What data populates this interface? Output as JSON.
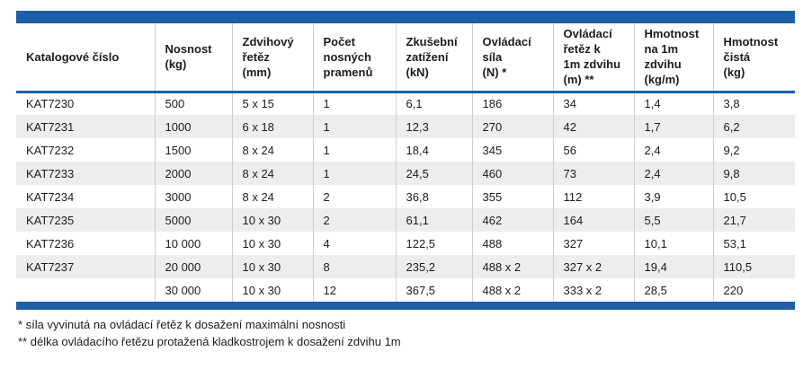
{
  "accent_color": "#1d5fa5",
  "stripe_color": "#ededed",
  "divider_color": "#cfcfcf",
  "table": {
    "columns": [
      {
        "id": "katalogove-cislo",
        "label": "Katalogové číslo"
      },
      {
        "id": "nosnost",
        "label": "Nosnost\n(kg)"
      },
      {
        "id": "zdvihovy-retez",
        "label": "Zdvihový\nřetěz\n(mm)"
      },
      {
        "id": "pocet-pramenu",
        "label": "Počet\nnosných\npramenů"
      },
      {
        "id": "zkusebni-zatizeni",
        "label": "Zkušební\nzatížení\n(kN)"
      },
      {
        "id": "ovladaci-sila",
        "label": "Ovládací\nsíla\n(N) *"
      },
      {
        "id": "ovladaci-retez",
        "label": "Ovládací\nřetěz k\n1m zdvihu\n(m) **"
      },
      {
        "id": "hmotnost-na-1m",
        "label": "Hmotnost\nna 1m\nzdvihu\n(kg/m)"
      },
      {
        "id": "hmotnost-cista",
        "label": "Hmotnost\nčistá\n(kg)"
      }
    ],
    "rows": [
      [
        "KAT7230",
        "500",
        "5 x 15",
        "1",
        "6,1",
        "186",
        "34",
        "1,4",
        "3,8"
      ],
      [
        "KAT7231",
        "1000",
        "6 x 18",
        "1",
        "12,3",
        "270",
        "42",
        "1,7",
        "6,2"
      ],
      [
        "KAT7232",
        "1500",
        "8 x 24",
        "1",
        "18,4",
        "345",
        "56",
        "2,4",
        "9,2"
      ],
      [
        "KAT7233",
        "2000",
        "8 x 24",
        "1",
        "24,5",
        "460",
        "73",
        "2,4",
        "9,8"
      ],
      [
        "KAT7234",
        "3000",
        "8 x 24",
        "2",
        "36,8",
        "355",
        "112",
        "3,9",
        "10,5"
      ],
      [
        "KAT7235",
        "5000",
        "10 x 30",
        "2",
        "61,1",
        "462",
        "164",
        "5,5",
        "21,7"
      ],
      [
        "KAT7236",
        "10 000",
        "10 x 30",
        "4",
        "122,5",
        "488",
        "327",
        "10,1",
        "53,1"
      ],
      [
        "KAT7237",
        "20 000",
        "10 x 30",
        "8",
        "235,2",
        "488 x 2",
        "327 x 2",
        "19,4",
        "110,5"
      ],
      [
        "",
        "30 000",
        "10 x 30",
        "12",
        "367,5",
        "488 x 2",
        "333 x 2",
        "28,5",
        "220"
      ]
    ]
  },
  "footnotes": [
    "* síla vyvinutá na ovládací řetěz k dosažení maximální nosnosti",
    "** délka ovládacího řetězu protažená kladkostrojem k dosažení zdvihu 1m"
  ]
}
